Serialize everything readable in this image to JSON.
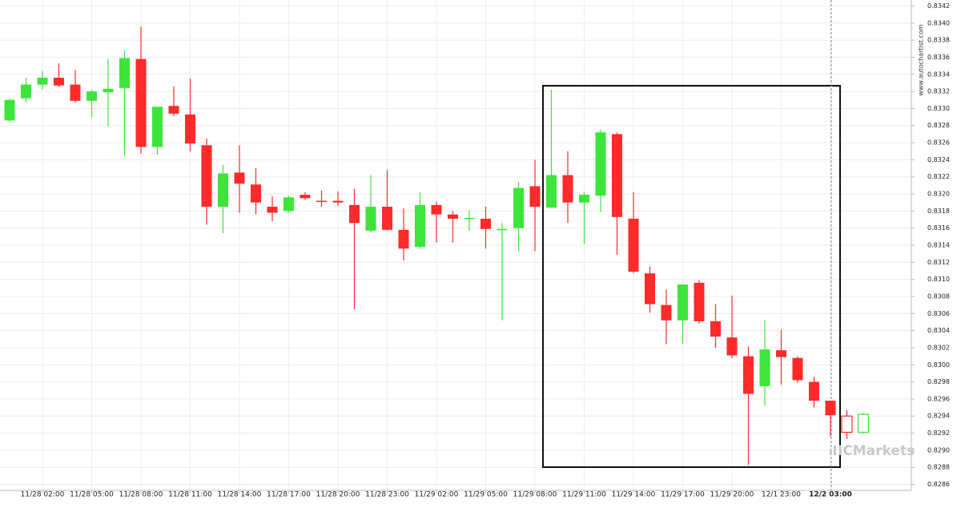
{
  "chart_data": {
    "type": "candlestick",
    "categories": [
      null,
      null,
      "11/28 02:00",
      null,
      null,
      "11/28 05:00",
      null,
      null,
      "11/28 08:00",
      null,
      null,
      "11/28 11:00",
      null,
      null,
      "11/28 14:00",
      null,
      null,
      "11/28 17:00",
      null,
      null,
      "11/28 20:00",
      null,
      null,
      "11/28 23:00",
      null,
      null,
      "11/29 02:00",
      null,
      null,
      "11/29 05:00",
      null,
      null,
      "11/29 08:00",
      null,
      null,
      "11/29 11:00",
      null,
      null,
      "11/29 14:00",
      null,
      null,
      "11/29 17:00",
      null,
      null,
      "11/29 20:00",
      null,
      null,
      "12/1 23:00",
      null,
      null,
      "12/2 03:00",
      null,
      null
    ],
    "open": [
      0.83286,
      0.83312,
      0.83328,
      0.83336,
      0.83328,
      0.83309,
      0.83319,
      0.83324,
      0.83358,
      0.83255,
      0.83303,
      0.83293,
      0.83257,
      0.83185,
      0.83225,
      0.83211,
      0.83185,
      0.8318,
      0.83199,
      0.83192,
      0.83192,
      0.83187,
      0.83157,
      0.83185,
      0.83158,
      0.83138,
      0.83187,
      0.83176,
      0.83171,
      0.83171,
      0.83158,
      0.8316,
      0.83209,
      0.83184,
      0.83222,
      0.8319,
      0.83198,
      0.8327,
      0.83171,
      0.83107,
      0.8307,
      0.83052,
      0.83096,
      0.83051,
      0.83032,
      0.8301,
      0.82975,
      0.83017,
      0.83008,
      0.8298,
      0.82958,
      0.8294,
      0.82921
    ],
    "high": [
      0.83312,
      0.83336,
      0.83344,
      0.83353,
      0.83345,
      0.83322,
      0.83358,
      0.83368,
      0.83396,
      0.83302,
      0.83326,
      0.83335,
      0.83265,
      0.83234,
      0.83257,
      0.8323,
      0.83197,
      0.83198,
      0.83202,
      0.83204,
      0.83203,
      0.83206,
      0.83222,
      0.83228,
      0.83183,
      0.83202,
      0.83191,
      0.8318,
      0.83181,
      0.83185,
      0.83166,
      0.83214,
      0.8324,
      0.83322,
      0.8325,
      0.83202,
      0.83275,
      0.83272,
      0.83202,
      0.83115,
      0.83088,
      0.83094,
      0.83099,
      0.83071,
      0.83081,
      0.83021,
      0.83052,
      0.83041,
      0.8301,
      0.82986,
      0.82958,
      0.82947,
      0.82944
    ],
    "low": [
      0.83284,
      0.83307,
      0.83322,
      0.83325,
      0.83307,
      0.8329,
      0.83279,
      0.83244,
      0.83247,
      0.83246,
      0.83291,
      0.8325,
      0.83164,
      0.83154,
      0.83178,
      0.83176,
      0.83168,
      0.83178,
      0.83193,
      0.83185,
      0.83186,
      0.83065,
      0.83155,
      0.83157,
      0.83122,
      0.83136,
      0.83143,
      0.83143,
      0.83157,
      0.83136,
      0.83052,
      0.83133,
      0.83133,
      0.83184,
      0.83166,
      0.83141,
      0.83179,
      0.83129,
      0.83107,
      0.83061,
      0.83024,
      0.83024,
      0.83048,
      0.8302,
      0.83008,
      0.82883,
      0.82952,
      0.82977,
      0.82979,
      0.8295,
      0.82916,
      0.82913,
      0.8292
    ],
    "close": [
      0.8331,
      0.83328,
      0.83336,
      0.83327,
      0.83309,
      0.8332,
      0.83323,
      0.83359,
      0.83255,
      0.83302,
      0.83294,
      0.83259,
      0.83185,
      0.83224,
      0.83212,
      0.8319,
      0.83178,
      0.83196,
      0.83195,
      0.83191,
      0.8319,
      0.83166,
      0.83185,
      0.83158,
      0.83136,
      0.83187,
      0.83176,
      0.83171,
      0.83172,
      0.83159,
      0.83159,
      0.83207,
      0.83185,
      0.83222,
      0.8319,
      0.83199,
      0.83272,
      0.83173,
      0.83109,
      0.83071,
      0.83052,
      0.83094,
      0.83051,
      0.83033,
      0.83011,
      0.82966,
      0.83018,
      0.83009,
      0.82982,
      0.82958,
      0.82941,
      0.82921,
      0.82942
    ],
    "up_color": "#3de43b",
    "down_color": "#ff2a2a",
    "hollow_last": 2,
    "ylim": [
      0.82853,
      0.83427
    ],
    "yticks": [
      0.8286,
      0.8288,
      {
        "value": 0.829,
        "label": "0.8290"
      },
      0.8292,
      0.8294,
      0.8296,
      0.8298,
      {
        "value": 0.83,
        "label": "0.8300"
      },
      0.8302,
      0.8304,
      0.8306,
      0.8308,
      {
        "value": 0.831,
        "label": "0.8310"
      },
      0.8312,
      0.8314,
      0.8316,
      0.8318,
      {
        "value": 0.832,
        "label": "0.8320"
      },
      0.8322,
      0.8324,
      0.8326,
      0.8328,
      {
        "value": 0.833,
        "label": "0.8330"
      },
      0.8332,
      0.8334,
      0.8336,
      0.8338,
      {
        "value": 0.834,
        "label": "0.8340"
      },
      0.8342
    ],
    "grid": true,
    "watermark": "www.autochartist.com",
    "logo": "ICMarkets"
  }
}
